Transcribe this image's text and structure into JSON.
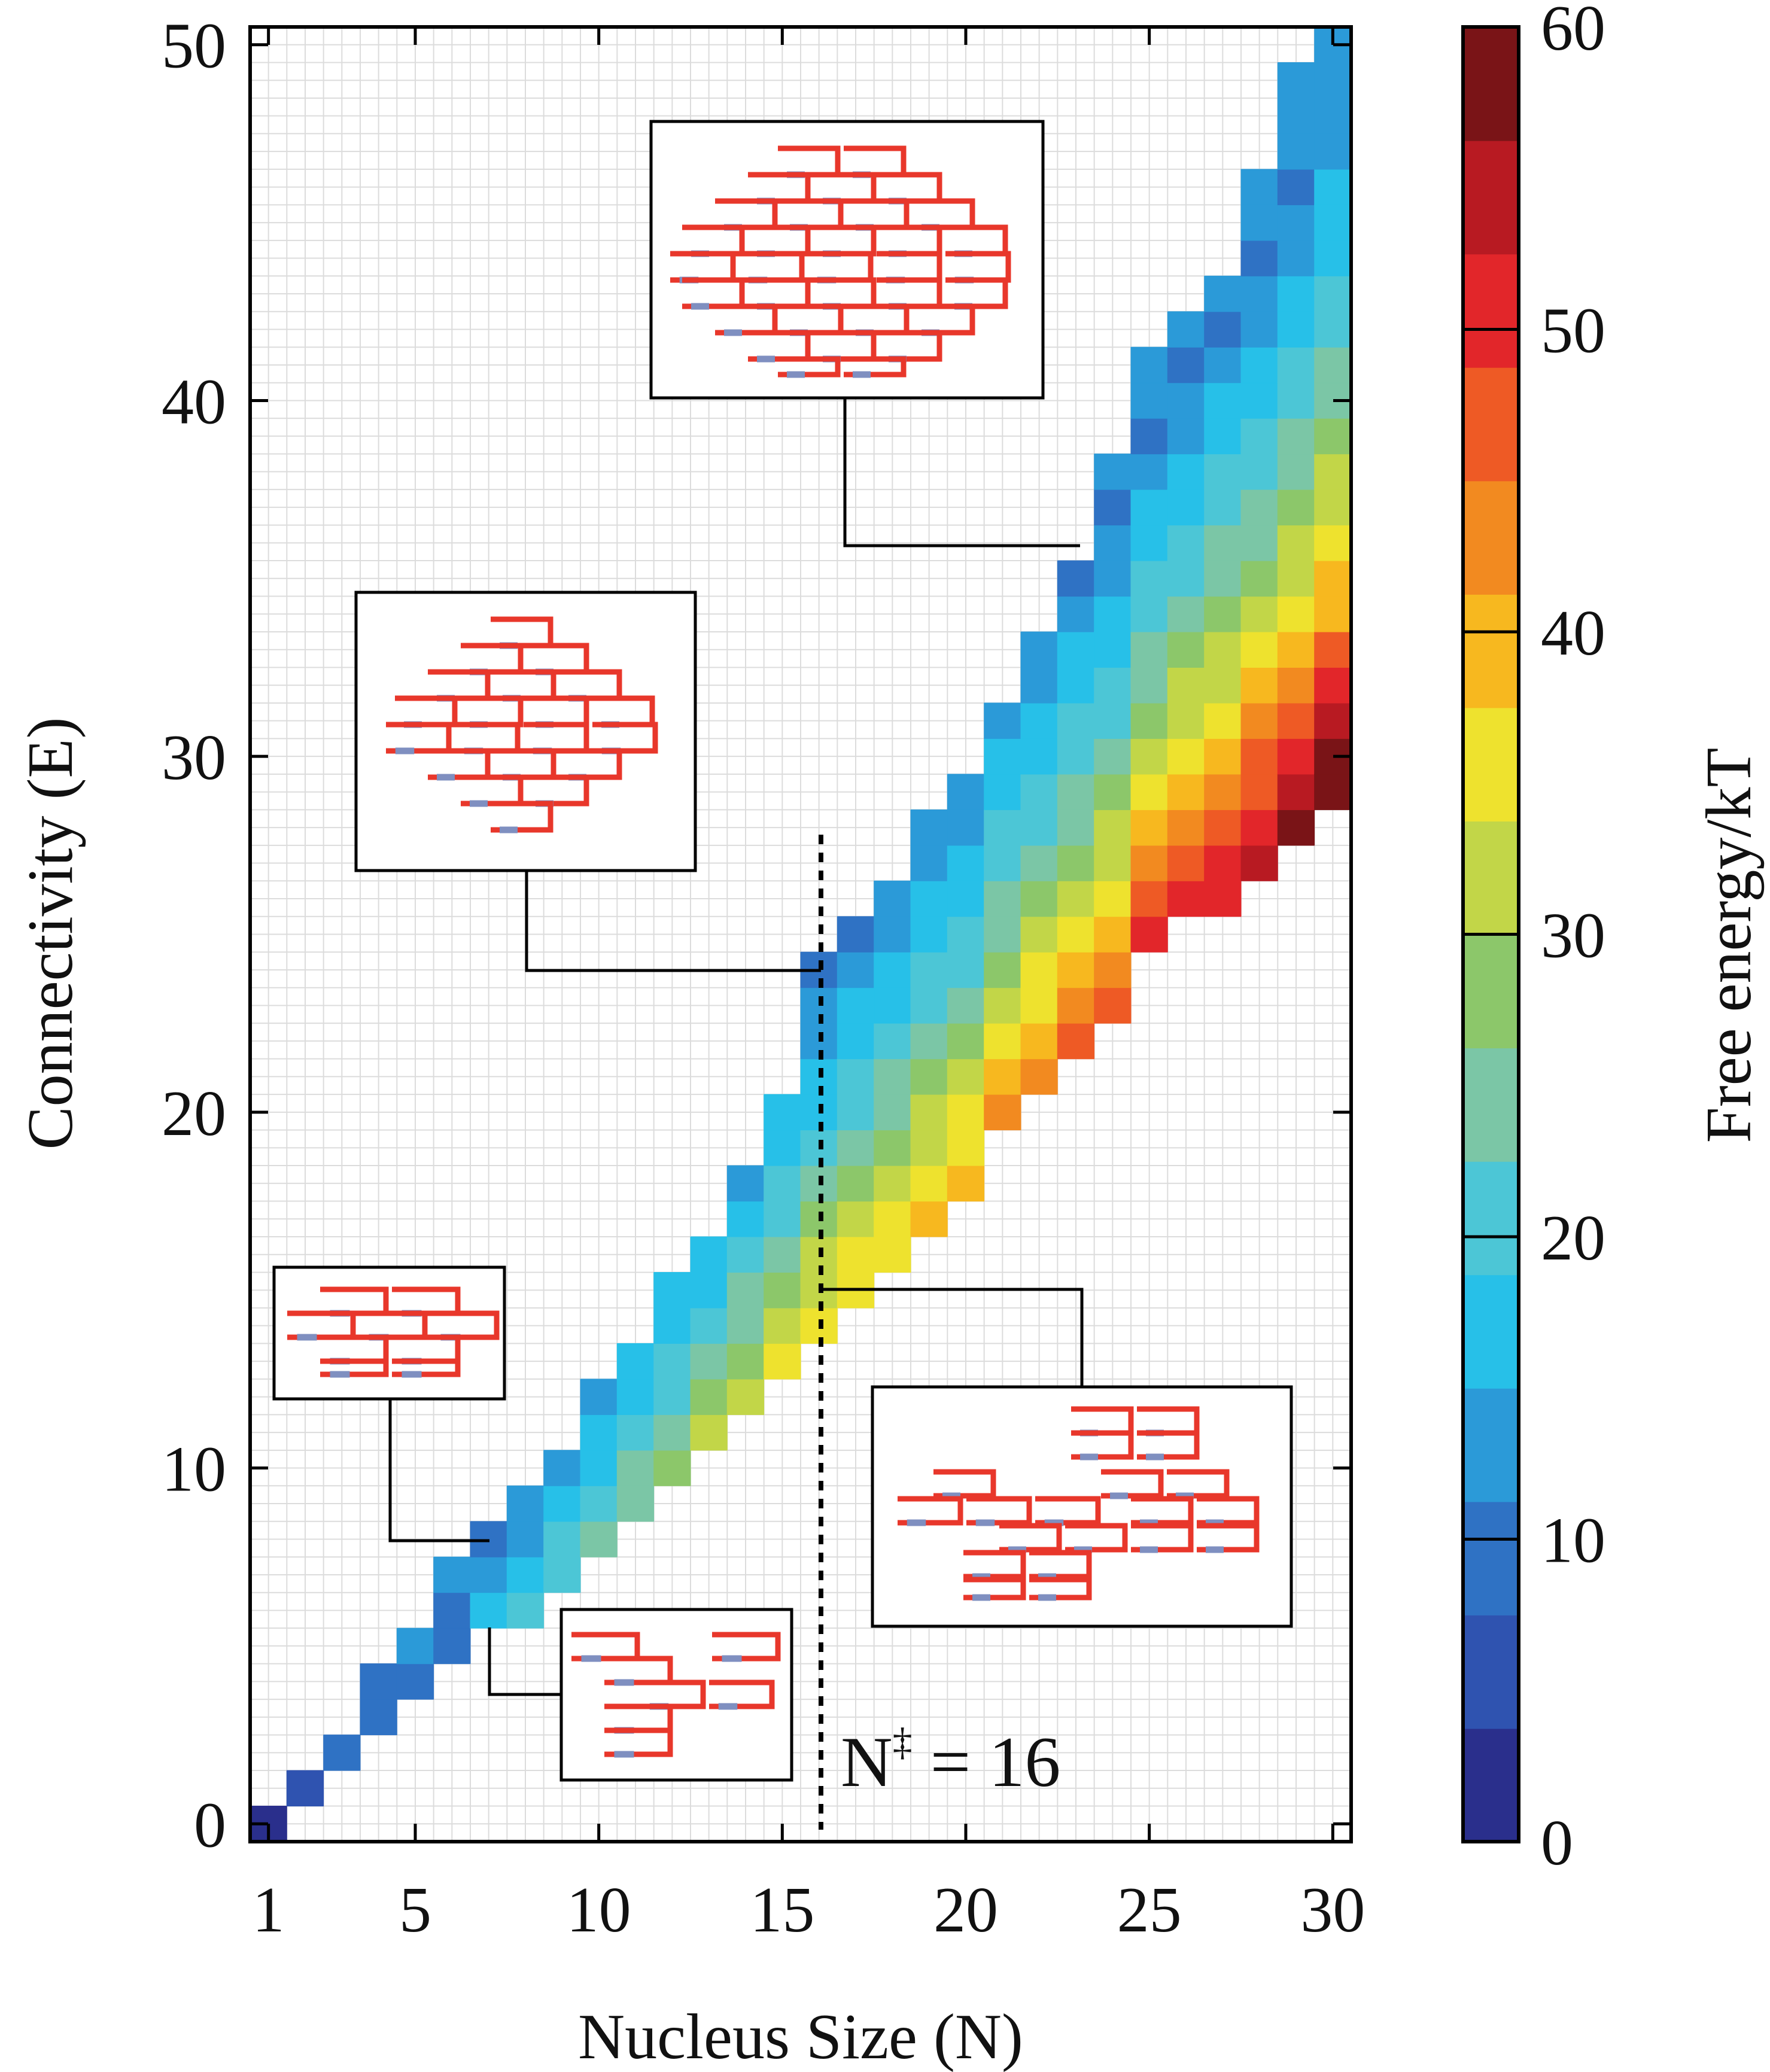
{
  "chart_data": {
    "type": "heatmap",
    "xlabel": "Nucleus Size (N)",
    "ylabel": "Connectivity (E)",
    "colorbar_label": "Free energy/kT",
    "x_range": [
      1,
      30
    ],
    "y_range": [
      0,
      50
    ],
    "x_ticks": [
      "1",
      "5",
      "10",
      "15",
      "20",
      "25",
      "30"
    ],
    "y_ticks": [
      "0",
      "10",
      "20",
      "30",
      "40",
      "50"
    ],
    "colorbar_ticks": [
      "0",
      "10",
      "20",
      "30",
      "40",
      "50",
      "60"
    ],
    "colorbar_range": [
      0,
      60
    ],
    "colormap": [
      "#2a2f8c",
      "#2f53b0",
      "#2f72c4",
      "#2b9ad8",
      "#27c0e8",
      "#4cc6d6",
      "#7bc6a6",
      "#8cc76a",
      "#c2d648",
      "#eee22e",
      "#f7b81f",
      "#f28a20",
      "#ee5a25",
      "#e2262a",
      "#b81a22",
      "#7a1417"
    ],
    "grid": true,
    "annotation": "N",
    "annotation_sup": "‡",
    "annotation_value": "= 16",
    "critical_size": 16,
    "rows": [
      {
        "n": 1,
        "e_min": 0,
        "energies": [
          2
        ]
      },
      {
        "n": 2,
        "e_min": 1,
        "energies": [
          6
        ]
      },
      {
        "n": 3,
        "e_min": 2,
        "energies": [
          8
        ]
      },
      {
        "n": 4,
        "e_min": 3,
        "energies": [
          9,
          11
        ]
      },
      {
        "n": 5,
        "e_min": 4,
        "energies": [
          10,
          12
        ]
      },
      {
        "n": 6,
        "e_min": 5,
        "energies": [
          10,
          11,
          13
        ]
      },
      {
        "n": 7,
        "e_min": 6,
        "energies": [
          18,
          13,
          11
        ]
      },
      {
        "n": 8,
        "e_min": 6,
        "energies": [
          20,
          17,
          14,
          12
        ]
      },
      {
        "n": 9,
        "e_min": 7,
        "energies": [
          22,
          19,
          16,
          13
        ]
      },
      {
        "n": 10,
        "e_min": 8,
        "energies": [
          24,
          21,
          18,
          16,
          13
        ]
      },
      {
        "n": 11,
        "e_min": 9,
        "energies": [
          26,
          23,
          20,
          17,
          15
        ]
      },
      {
        "n": 12,
        "e_min": 10,
        "energies": [
          28,
          25,
          22,
          19,
          16,
          15
        ]
      },
      {
        "n": 13,
        "e_min": 11,
        "energies": [
          30,
          27,
          24,
          21,
          18,
          16
        ]
      },
      {
        "n": 14,
        "e_min": 12,
        "energies": [
          32,
          29,
          26,
          23,
          20,
          17,
          14
        ]
      },
      {
        "n": 15,
        "e_min": 13,
        "energies": [
          34,
          31,
          28,
          25,
          22,
          19,
          16,
          15
        ]
      },
      {
        "n": 16,
        "e_min": 14,
        "energies": [
          35,
          33,
          30,
          27,
          24,
          21,
          18,
          16,
          13,
          12,
          11
        ]
      },
      {
        "n": 17,
        "e_min": 15,
        "energies": [
          36,
          34,
          31,
          28,
          25,
          22,
          19,
          17,
          15,
          13,
          11
        ]
      },
      {
        "n": 18,
        "e_min": 16,
        "energies": [
          37,
          35,
          32,
          29,
          26,
          23,
          20,
          18,
          16,
          14,
          12
        ]
      },
      {
        "n": 19,
        "e_min": 17,
        "energies": [
          38,
          36,
          33,
          30,
          27,
          24,
          21,
          19,
          17,
          15,
          13,
          12
        ]
      },
      {
        "n": 20,
        "e_min": 18,
        "energies": [
          40,
          37,
          34,
          31,
          28,
          25,
          22,
          20,
          18,
          16,
          14,
          12
        ]
      },
      {
        "n": 21,
        "e_min": 20,
        "energies": [
          42,
          38,
          35,
          32,
          29,
          26,
          23,
          21,
          19,
          17,
          15,
          13
        ]
      },
      {
        "n": 22,
        "e_min": 21,
        "energies": [
          44,
          40,
          37,
          34,
          31,
          28,
          25,
          22,
          20,
          18,
          16,
          14,
          12
        ]
      },
      {
        "n": 23,
        "e_min": 22,
        "energies": [
          45,
          42,
          38,
          35,
          32,
          29,
          26,
          23,
          21,
          19,
          17,
          15,
          13,
          11
        ]
      },
      {
        "n": 24,
        "e_min": 23,
        "energies": [
          47,
          44,
          40,
          36,
          33,
          30,
          27,
          24,
          22,
          20,
          18,
          16,
          14,
          12,
          11,
          12
        ]
      },
      {
        "n": 25,
        "e_min": 25,
        "energies": [
          49,
          46,
          42,
          38,
          34,
          31,
          28,
          25,
          23,
          21,
          19,
          17,
          15,
          13,
          11,
          12,
          13
        ]
      },
      {
        "n": 26,
        "e_min": 26,
        "energies": [
          51,
          48,
          44,
          40,
          36,
          33,
          30,
          27,
          24,
          22,
          20,
          18,
          16,
          14,
          12,
          11,
          12
        ]
      },
      {
        "n": 27,
        "e_min": 26,
        "energies": [
          51,
          49,
          46,
          42,
          39,
          36,
          33,
          30,
          27,
          25,
          23,
          21,
          19,
          17,
          15,
          13,
          11,
          12
        ]
      },
      {
        "n": 28,
        "e_min": 27,
        "energies": [
          56,
          52,
          48,
          45,
          42,
          39,
          35,
          31,
          28,
          26,
          24,
          22,
          20,
          18,
          16,
          14,
          12,
          11,
          12,
          13
        ]
      },
      {
        "n": 29,
        "e_min": 28,
        "energies": [
          58,
          55,
          51,
          47,
          44,
          40,
          36,
          33,
          30,
          27,
          25,
          23,
          21,
          19,
          17,
          15,
          13,
          12,
          11,
          12,
          13,
          14
        ]
      },
      {
        "n": 30,
        "e_min": 29,
        "energies": [
          60,
          57,
          53,
          49,
          45,
          41,
          38,
          35,
          32,
          30,
          28,
          26,
          24,
          22,
          20,
          18,
          16,
          15,
          14,
          13,
          12,
          14
        ]
      }
    ]
  }
}
